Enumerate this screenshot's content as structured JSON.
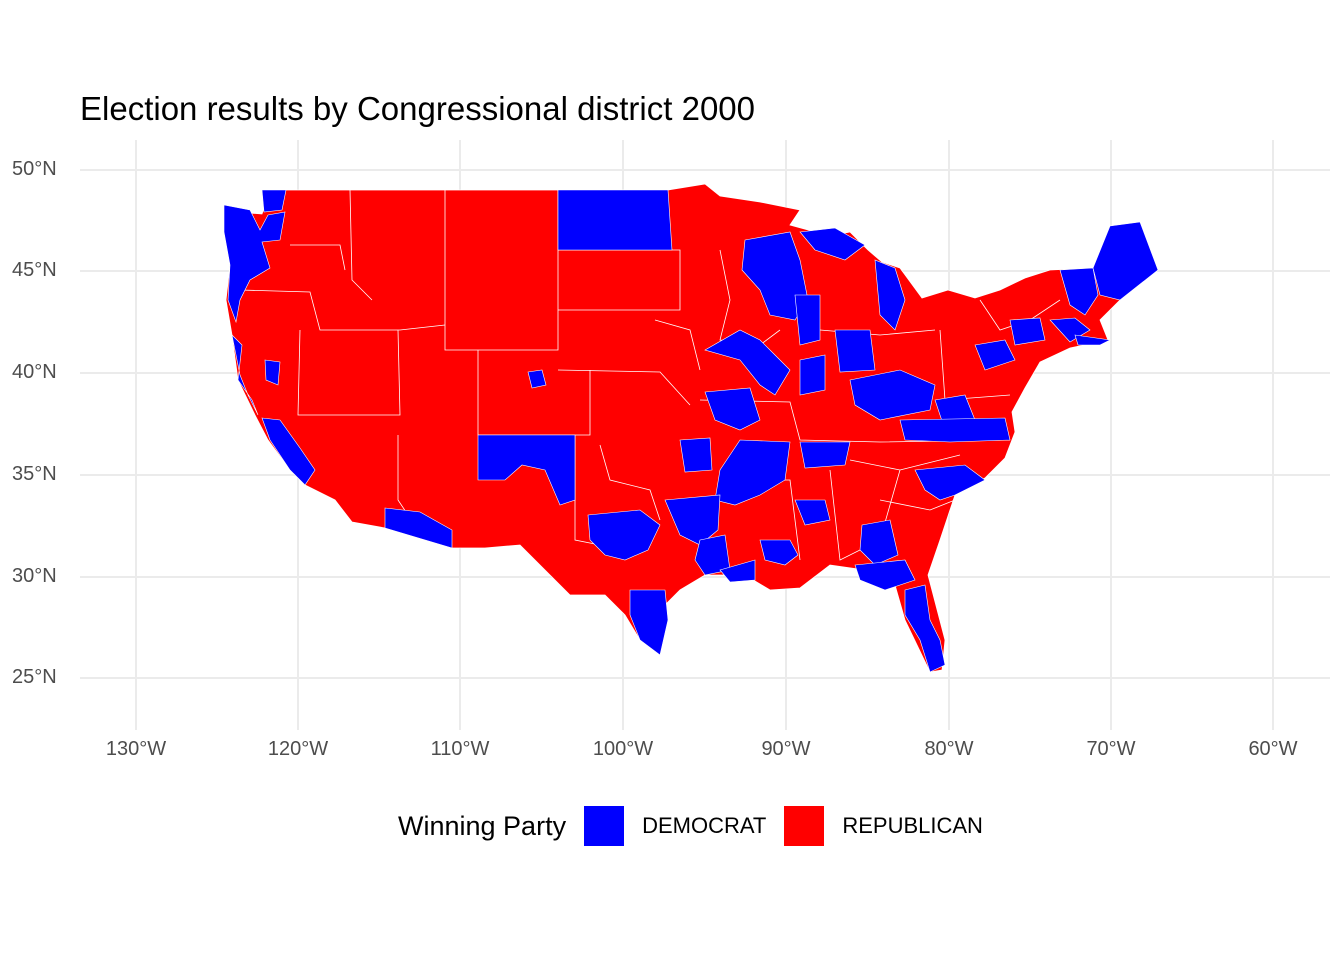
{
  "title": "Election results by Congressional district 2000",
  "legend": {
    "title": "Winning Party",
    "entries": [
      {
        "label": "DEMOCRAT",
        "color": "#0000ff"
      },
      {
        "label": "REPUBLICAN",
        "color": "#ff0000"
      }
    ]
  },
  "axes": {
    "x_ticks": [
      "130°W",
      "120°W",
      "110°W",
      "100°W",
      "90°W",
      "80°W",
      "70°W",
      "60°W"
    ],
    "y_ticks": [
      "50°N",
      "45°N",
      "40°N",
      "35°N",
      "30°N",
      "25°N"
    ]
  },
  "colors": {
    "democrat": "#0000ff",
    "republican": "#ff0000",
    "grid": "#ebebeb",
    "boundary": "#ffffff"
  }
}
